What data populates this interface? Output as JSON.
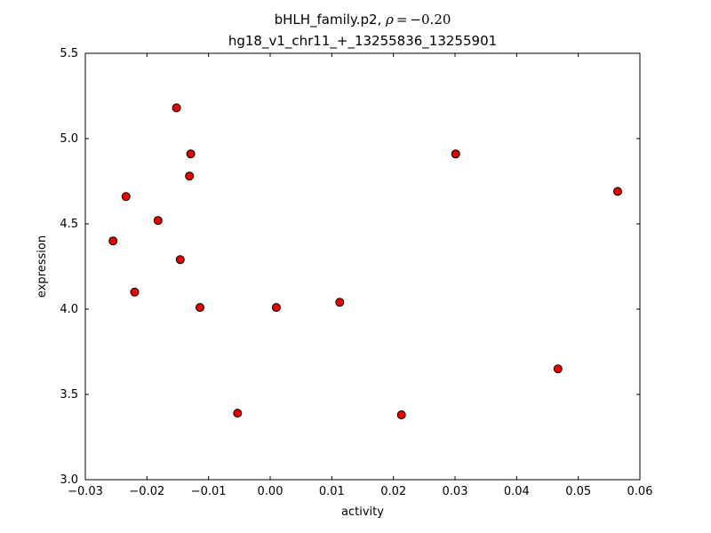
{
  "chart_data": {
    "type": "scatter",
    "title_prefix": "bHLH_family.p2, ",
    "title_rho": "ρ",
    "title_eq": " = −0.20",
    "subtitle": "hg18_v1_chr11_+_13255836_13255901",
    "xlabel": "activity",
    "ylabel": "expression",
    "xlim": [
      -0.03,
      0.06
    ],
    "ylim": [
      3.0,
      5.5
    ],
    "grid": false,
    "legend": "none",
    "marker_color": "#e60000",
    "marker_edge_color": "#000000",
    "xticks": [
      {
        "v": -0.03,
        "label": "−0.03"
      },
      {
        "v": -0.02,
        "label": "−0.02"
      },
      {
        "v": -0.01,
        "label": "−0.01"
      },
      {
        "v": 0.0,
        "label": "0.00"
      },
      {
        "v": 0.01,
        "label": "0.01"
      },
      {
        "v": 0.02,
        "label": "0.02"
      },
      {
        "v": 0.03,
        "label": "0.03"
      },
      {
        "v": 0.04,
        "label": "0.04"
      },
      {
        "v": 0.05,
        "label": "0.05"
      },
      {
        "v": 0.06,
        "label": "0.06"
      }
    ],
    "yticks": [
      {
        "v": 3.0,
        "label": "3.0"
      },
      {
        "v": 3.5,
        "label": "3.5"
      },
      {
        "v": 4.0,
        "label": "4.0"
      },
      {
        "v": 4.5,
        "label": "4.5"
      },
      {
        "v": 5.0,
        "label": "5.0"
      },
      {
        "v": 5.5,
        "label": "5.5"
      }
    ],
    "points": [
      [
        -0.0255,
        4.4
      ],
      [
        -0.0234,
        4.66
      ],
      [
        -0.022,
        4.1
      ],
      [
        -0.0182,
        4.52
      ],
      [
        -0.0152,
        5.18
      ],
      [
        -0.0146,
        4.29
      ],
      [
        -0.0131,
        4.78
      ],
      [
        -0.0129,
        4.91
      ],
      [
        -0.0114,
        4.01
      ],
      [
        -0.0053,
        3.39
      ],
      [
        0.001,
        4.01
      ],
      [
        0.0113,
        4.04
      ],
      [
        0.0213,
        3.38
      ],
      [
        0.0301,
        4.91
      ],
      [
        0.0467,
        3.65
      ],
      [
        0.0564,
        4.69
      ]
    ]
  }
}
